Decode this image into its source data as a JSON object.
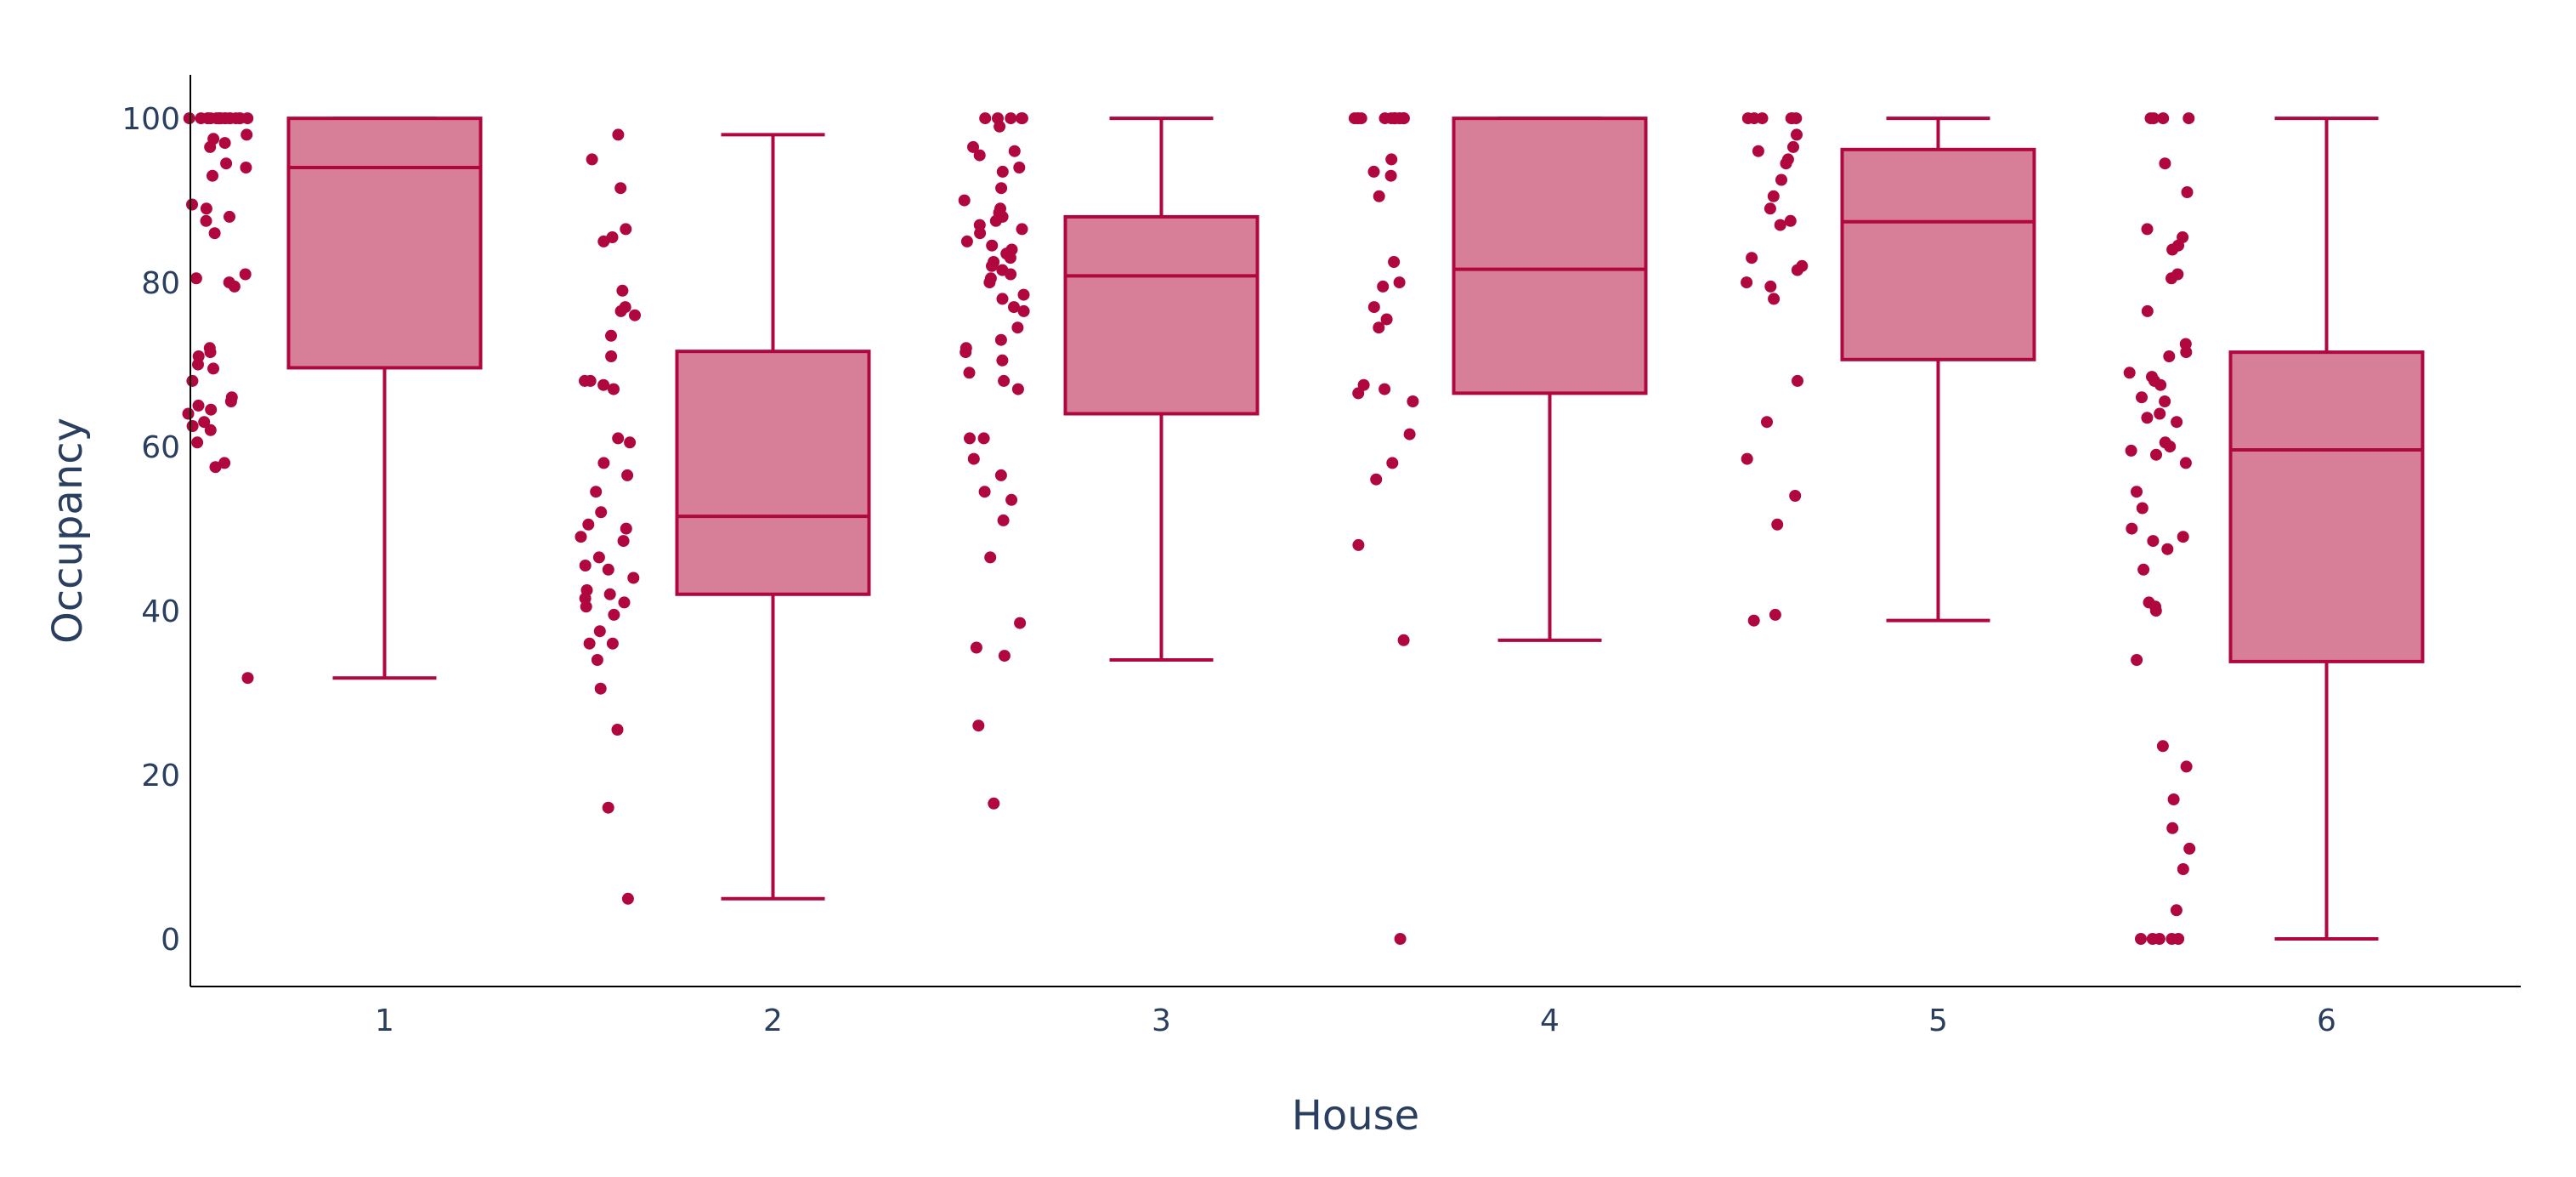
{
  "colors": {
    "box_fill": "#d77f99",
    "box_line": "#b0073f",
    "point": "#b0073f",
    "axis": "#000000",
    "text": "#2a3f5f",
    "background": "#ffffff"
  },
  "chart_data": {
    "type": "box",
    "title": "",
    "xlabel": "House",
    "ylabel": "Occupancy",
    "ylim": [
      -5.8,
      105.3
    ],
    "yticks": [
      0,
      20,
      40,
      60,
      80,
      100
    ],
    "grid": false,
    "categories": [
      "1",
      "2",
      "3",
      "4",
      "5",
      "6"
    ],
    "boxes": [
      {
        "category": "1",
        "min": 31.8,
        "q1": 69.6,
        "median": 94.0,
        "q3": 100,
        "max": 100
      },
      {
        "category": "2",
        "min": 4.9,
        "q1": 42.0,
        "median": 51.5,
        "q3": 71.6,
        "max": 98.0
      },
      {
        "category": "3",
        "min": 34.0,
        "q1": 64.0,
        "median": 80.8,
        "q3": 88.0,
        "max": 100
      },
      {
        "category": "4",
        "min": 36.4,
        "q1": 66.5,
        "median": 81.6,
        "q3": 100,
        "max": 100
      },
      {
        "category": "5",
        "min": 38.8,
        "q1": 70.6,
        "median": 87.4,
        "q3": 96.2,
        "max": 100
      },
      {
        "category": "6",
        "min": 0,
        "q1": 33.8,
        "median": 59.6,
        "q3": 71.5,
        "max": 100
      }
    ],
    "points": [
      {
        "category": "1",
        "values": [
          100,
          100,
          100,
          100,
          100,
          100,
          100,
          100,
          100,
          100,
          100,
          100,
          100,
          100,
          100,
          100,
          100,
          100,
          98,
          97.5,
          97,
          96.5,
          94.5,
          94,
          93,
          89.5,
          89,
          88,
          87.5,
          86,
          81,
          80.5,
          80,
          79.5,
          72,
          71.5,
          71,
          70,
          69.5,
          68,
          66,
          65.5,
          65,
          64.5,
          64,
          63,
          62.5,
          62,
          60.5,
          58,
          57.5,
          31.8
        ]
      },
      {
        "category": "2",
        "values": [
          98,
          95,
          91.5,
          86.5,
          85.5,
          85,
          79,
          77,
          76.5,
          76,
          73.5,
          71,
          68,
          68,
          67.5,
          67,
          61,
          60.5,
          58,
          56.5,
          54.5,
          52,
          50.5,
          50,
          49,
          48.5,
          46.5,
          45.5,
          45,
          44,
          42.5,
          42,
          41.5,
          41,
          40.5,
          39.5,
          37.5,
          36,
          36,
          34,
          30.5,
          25.5,
          16,
          4.9
        ]
      },
      {
        "category": "3",
        "values": [
          100,
          100,
          100,
          100,
          100,
          99,
          96.5,
          96,
          95.5,
          94,
          93.5,
          91.5,
          90,
          89,
          88.5,
          88,
          87.5,
          87,
          86.5,
          86,
          85,
          84.5,
          84,
          83.5,
          83,
          82.5,
          82,
          81.5,
          81,
          80.5,
          80,
          78.5,
          78,
          77,
          76.5,
          74.5,
          73,
          72,
          71.5,
          70.5,
          69,
          68,
          67,
          61,
          61,
          58.5,
          56.5,
          54.5,
          53.5,
          51,
          46.5,
          38.5,
          35.5,
          34.5,
          26,
          16.5
        ]
      },
      {
        "category": "4",
        "values": [
          100,
          100,
          100,
          100,
          100,
          100,
          100,
          100,
          100,
          100,
          100,
          100,
          100,
          100,
          100,
          95,
          93.5,
          93,
          90.5,
          82.5,
          80,
          79.5,
          77,
          75.5,
          74.5,
          67.5,
          67,
          66.5,
          65.5,
          61.5,
          58,
          56,
          48,
          36.4,
          0
        ]
      },
      {
        "category": "5",
        "values": [
          100,
          100,
          100,
          100,
          100,
          100,
          98,
          96.5,
          96,
          95,
          94.5,
          92.5,
          90.5,
          89,
          87.5,
          87,
          83,
          82,
          81.5,
          80,
          79.5,
          78,
          68,
          63,
          58.5,
          54,
          50.5,
          39.5,
          38.8
        ]
      },
      {
        "category": "6",
        "values": [
          100,
          100,
          100,
          100,
          94.5,
          91,
          86.5,
          85.5,
          84.5,
          84,
          81,
          80.5,
          76.5,
          72.5,
          71.5,
          71,
          69,
          68.5,
          68,
          67.5,
          66,
          65.5,
          64,
          63.5,
          63,
          60.5,
          60,
          59.5,
          59,
          58,
          54.5,
          52.5,
          50,
          49,
          48.5,
          47.5,
          45,
          41,
          40.5,
          40,
          34,
          23.5,
          21,
          17,
          13.5,
          11,
          8.5,
          3.5,
          0,
          0,
          0,
          0,
          0
        ]
      }
    ]
  }
}
